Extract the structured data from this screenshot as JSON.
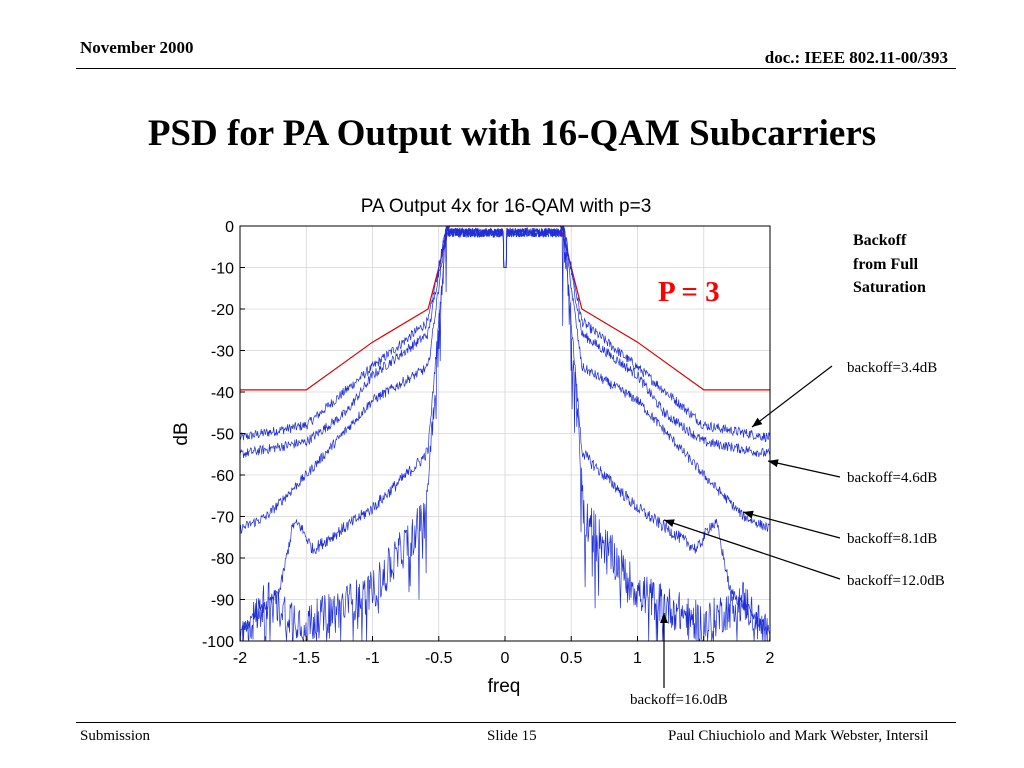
{
  "header": {
    "date": "November 2000",
    "doc": "doc.: IEEE 802.11-00/393"
  },
  "slide": {
    "title": "PSD for PA Output with 16-QAM Subcarriers"
  },
  "annotations": {
    "backoff_title": [
      "Backoff",
      "from Full",
      "Saturation"
    ],
    "p_label": "P = 3",
    "backoff_labels": [
      "backoff=3.4dB",
      "backoff=4.6dB",
      "backoff=8.1dB",
      "backoff=12.0dB",
      "backoff=16.0dB"
    ]
  },
  "footer": {
    "left": "Submission",
    "center": "Slide 15",
    "right": "Paul Chiuchiolo and Mark Webster, Intersil"
  },
  "chart_data": {
    "type": "line",
    "title": "PA Output 4x for 16-QAM with p=3",
    "xlabel": "freq",
    "ylabel": "dB",
    "xlim": [
      -2,
      2
    ],
    "ylim": [
      -100,
      0
    ],
    "xticks": [
      "-2",
      "-1.5",
      "-1",
      "-0.5",
      "0",
      "0.5",
      "1",
      "1.5",
      "2"
    ],
    "yticks": [
      "0",
      "-10",
      "-20",
      "-30",
      "-40",
      "-50",
      "-60",
      "-70",
      "-80",
      "-90",
      "-100"
    ],
    "grid": true,
    "colors": {
      "mask": "#e00000",
      "psd": "#1f2fd8"
    },
    "mask": {
      "x": [
        -2,
        -1.5,
        -1.0,
        -0.58,
        -0.5,
        -0.42,
        0.42,
        0.5,
        0.58,
        1.0,
        1.5,
        2
      ],
      "y": [
        -39.5,
        -39.5,
        -28,
        -20,
        -10,
        0,
        0,
        -10,
        -20,
        -28,
        -39.5,
        -39.5
      ]
    },
    "series": [
      {
        "backoff": "3.4dB",
        "x": [
          -2,
          -1.5,
          -1.0,
          -0.58,
          -0.44,
          0.44,
          0.58,
          1.0,
          1.5,
          2
        ],
        "y": [
          -51,
          -48,
          -34,
          -23,
          0,
          0,
          -23,
          -34,
          -48,
          -51
        ],
        "noise": 1.2
      },
      {
        "backoff": "4.6dB",
        "x": [
          -2,
          -1.5,
          -1.2,
          -1.0,
          -0.58,
          -0.44,
          0.44,
          0.58,
          1.0,
          1.2,
          1.5,
          2
        ],
        "y": [
          -55,
          -52,
          -45,
          -36,
          -26,
          0,
          0,
          -26,
          -36,
          -45,
          -52,
          -55
        ],
        "noise": 1.2
      },
      {
        "backoff": "8.1dB",
        "x": [
          -2,
          -1.8,
          -1.5,
          -1.0,
          -0.58,
          -0.44,
          0.44,
          0.58,
          1.0,
          1.5,
          1.8,
          2
        ],
        "y": [
          -73,
          -70,
          -60,
          -42,
          -34,
          0,
          0,
          -34,
          -42,
          -60,
          -70,
          -73
        ],
        "noise": 1.2
      },
      {
        "backoff": "12.0dB",
        "x": [
          -2,
          -1.7,
          -1.6,
          -1.55,
          -1.45,
          -1.0,
          -0.62,
          -0.58,
          -0.44,
          0.44,
          0.58,
          0.62,
          1.0,
          1.45,
          1.55,
          1.6,
          1.7,
          2
        ],
        "y": [
          -98,
          -88,
          -72,
          -72,
          -78,
          -68,
          -56,
          -54,
          0,
          0,
          -54,
          -56,
          -68,
          -78,
          -72,
          -72,
          -88,
          -98
        ],
        "noise": 1.5
      },
      {
        "backoff": "16.0dB",
        "x": [
          -2,
          -1.8,
          -1.5,
          -1.0,
          -0.6,
          -0.44,
          0.44,
          0.6,
          1.0,
          1.5,
          1.8,
          2
        ],
        "y": [
          -100,
          -90,
          -96,
          -88,
          -70,
          0,
          0,
          -70,
          -88,
          -96,
          -90,
          -100
        ],
        "noise": 5
      }
    ]
  }
}
